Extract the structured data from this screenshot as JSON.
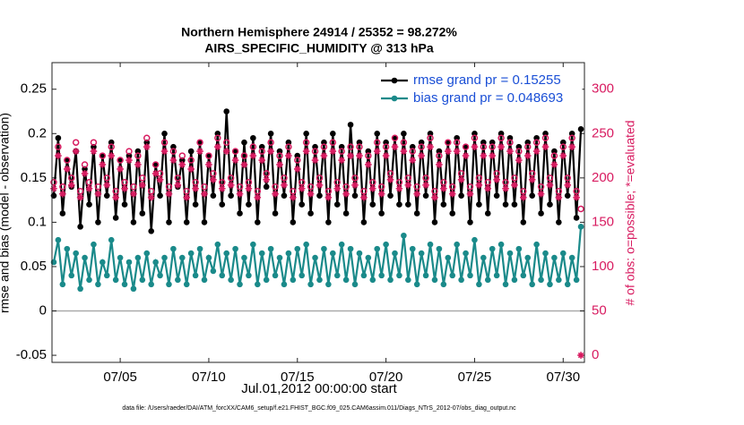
{
  "chart_data": {
    "type": "line",
    "title": "Northern Hemisphere 24914 / 25352 = 98.272%",
    "subtitle": "AIRS_SPECIFIC_HUMIDITY @ 313 hPa",
    "xlabel": "Jul.01,2012 00:00:00 start",
    "ylabel": "rmse and bias (model - observation)",
    "y2label": "# of obs: o=possible; *=evaluated",
    "footnote": "data file: /Users/raeder/DAI/ATM_forcXX/CAM6_setup/f.e21.FHIST_BGC.f09_025.CAM6assim.011/Diags_NTrS_2012-07/obs_diag_output.nc",
    "xlim": [
      1.15,
      31.2
    ],
    "xticks": [
      {
        "value": 5,
        "label": "07/05"
      },
      {
        "value": 10,
        "label": "07/10"
      },
      {
        "value": 15,
        "label": "07/15"
      },
      {
        "value": 20,
        "label": "07/20"
      },
      {
        "value": 25,
        "label": "07/25"
      },
      {
        "value": 30,
        "label": "07/30"
      }
    ],
    "ylim": [
      -0.058,
      0.28
    ],
    "yticks": [
      -0.05,
      0,
      0.05,
      0.1,
      0.15,
      0.2,
      0.25
    ],
    "y2lim": [
      -8,
      330
    ],
    "y2ticks": [
      0,
      50,
      100,
      150,
      200,
      250,
      300
    ],
    "zero_line": 0,
    "legend": "upper right",
    "x": [
      1.25,
      1.5,
      1.75,
      2,
      2.25,
      2.5,
      2.75,
      3,
      3.25,
      3.5,
      3.75,
      4,
      4.25,
      4.5,
      4.75,
      5,
      5.25,
      5.5,
      5.75,
      6,
      6.25,
      6.5,
      6.75,
      7,
      7.25,
      7.5,
      7.75,
      8,
      8.25,
      8.5,
      8.75,
      9,
      9.25,
      9.5,
      9.75,
      10,
      10.25,
      10.5,
      10.75,
      11,
      11.25,
      11.5,
      11.75,
      12,
      12.25,
      12.5,
      12.75,
      13,
      13.25,
      13.5,
      13.75,
      14,
      14.25,
      14.5,
      14.75,
      15,
      15.25,
      15.5,
      15.75,
      16,
      16.25,
      16.5,
      16.75,
      17,
      17.25,
      17.5,
      17.75,
      18,
      18.25,
      18.5,
      18.75,
      19,
      19.25,
      19.5,
      19.75,
      20,
      20.25,
      20.5,
      20.75,
      21,
      21.25,
      21.5,
      21.75,
      22,
      22.25,
      22.5,
      22.75,
      23,
      23.25,
      23.5,
      23.75,
      24,
      24.25,
      24.5,
      24.75,
      25,
      25.25,
      25.5,
      25.75,
      26,
      26.25,
      26.5,
      26.75,
      27,
      27.25,
      27.5,
      27.75,
      28,
      28.25,
      28.5,
      28.75,
      29,
      29.25,
      29.5,
      29.75,
      30,
      30.25,
      30.5,
      30.75,
      31
    ],
    "series": [
      {
        "name": "rmse grand pr = 0.15255",
        "color": "#000000",
        "marker": "dot",
        "line": true,
        "values": [
          0.13,
          0.195,
          0.11,
          0.17,
          0.14,
          0.18,
          0.095,
          0.16,
          0.12,
          0.185,
          0.1,
          0.175,
          0.13,
          0.19,
          0.105,
          0.17,
          0.12,
          0.175,
          0.1,
          0.18,
          0.11,
          0.19,
          0.09,
          0.165,
          0.13,
          0.2,
          0.1,
          0.185,
          0.14,
          0.17,
          0.1,
          0.18,
          0.12,
          0.19,
          0.1,
          0.175,
          0.13,
          0.2,
          0.12,
          0.225,
          0.13,
          0.18,
          0.11,
          0.19,
          0.12,
          0.195,
          0.1,
          0.185,
          0.14,
          0.2,
          0.11,
          0.18,
          0.13,
          0.19,
          0.1,
          0.175,
          0.12,
          0.2,
          0.11,
          0.185,
          0.13,
          0.19,
          0.1,
          0.2,
          0.12,
          0.185,
          0.11,
          0.21,
          0.13,
          0.19,
          0.1,
          0.18,
          0.12,
          0.2,
          0.11,
          0.19,
          0.13,
          0.195,
          0.12,
          0.2,
          0.12,
          0.185,
          0.11,
          0.19,
          0.13,
          0.2,
          0.1,
          0.18,
          0.12,
          0.19,
          0.11,
          0.195,
          0.13,
          0.185,
          0.1,
          0.2,
          0.12,
          0.19,
          0.11,
          0.19,
          0.13,
          0.2,
          0.12,
          0.195,
          0.12,
          0.185,
          0.1,
          0.19,
          0.13,
          0.195,
          0.11,
          0.2,
          0.12,
          0.18,
          0.1,
          0.19,
          0.13,
          0.2,
          0.105,
          0.205
        ]
      },
      {
        "name": "bias grand pr = 0.048693",
        "color": "#1a8a8a",
        "marker": "dot",
        "line": true,
        "values": [
          0.055,
          0.08,
          0.03,
          0.07,
          0.04,
          0.065,
          0.025,
          0.06,
          0.035,
          0.075,
          0.03,
          0.055,
          0.04,
          0.08,
          0.035,
          0.06,
          0.03,
          0.055,
          0.025,
          0.06,
          0.035,
          0.065,
          0.03,
          0.055,
          0.04,
          0.06,
          0.03,
          0.07,
          0.035,
          0.06,
          0.03,
          0.065,
          0.04,
          0.07,
          0.035,
          0.06,
          0.045,
          0.075,
          0.04,
          0.065,
          0.035,
          0.07,
          0.03,
          0.06,
          0.04,
          0.075,
          0.03,
          0.065,
          0.035,
          0.07,
          0.04,
          0.06,
          0.03,
          0.065,
          0.035,
          0.07,
          0.04,
          0.075,
          0.03,
          0.06,
          0.035,
          0.07,
          0.03,
          0.065,
          0.04,
          0.075,
          0.035,
          0.07,
          0.03,
          0.065,
          0.04,
          0.06,
          0.035,
          0.07,
          0.04,
          0.075,
          0.035,
          0.065,
          0.04,
          0.085,
          0.035,
          0.07,
          0.03,
          0.065,
          0.04,
          0.075,
          0.035,
          0.07,
          0.03,
          0.06,
          0.04,
          0.075,
          0.035,
          0.065,
          0.04,
          0.08,
          0.03,
          0.06,
          0.035,
          0.07,
          0.04,
          0.075,
          0.03,
          0.065,
          0.035,
          0.07,
          0.04,
          0.06,
          0.03,
          0.075,
          0.035,
          0.065,
          0.03,
          0.06,
          0.035,
          0.065,
          0.03,
          0.06,
          0.035,
          0.095
        ]
      },
      {
        "color": "#d81b60",
        "marker": "o",
        "axis": "y2",
        "values": [
          195,
          235,
          190,
          220,
          200,
          240,
          185,
          215,
          195,
          240,
          190,
          225,
          200,
          235,
          185,
          220,
          195,
          230,
          190,
          225,
          200,
          245,
          185,
          215,
          205,
          240,
          190,
          230,
          200,
          225,
          185,
          220,
          195,
          240,
          190,
          225,
          205,
          245,
          195,
          240,
          200,
          230,
          190,
          225,
          195,
          235,
          185,
          230,
          205,
          240,
          190,
          225,
          200,
          235,
          185,
          220,
          195,
          240,
          190,
          230,
          200,
          235,
          185,
          240,
          195,
          230,
          190,
          235,
          200,
          235,
          185,
          225,
          195,
          240,
          190,
          235,
          205,
          245,
          195,
          240,
          200,
          230,
          190,
          235,
          200,
          245,
          185,
          225,
          195,
          240,
          190,
          240,
          205,
          235,
          190,
          245,
          200,
          235,
          195,
          235,
          205,
          245,
          195,
          240,
          200,
          230,
          185,
          235,
          205,
          240,
          190,
          245,
          200,
          225,
          185,
          235,
          200,
          245,
          185,
          165
        ]
      },
      {
        "color": "#d81b60",
        "marker": "*",
        "axis": "y2",
        "values": [
          188,
          225,
          182,
          210,
          192,
          230,
          178,
          205,
          188,
          230,
          182,
          215,
          192,
          225,
          178,
          210,
          188,
          220,
          182,
          215,
          192,
          235,
          178,
          205,
          198,
          230,
          182,
          220,
          192,
          215,
          178,
          210,
          188,
          230,
          182,
          215,
          198,
          235,
          188,
          230,
          192,
          220,
          182,
          215,
          188,
          225,
          178,
          220,
          198,
          230,
          182,
          215,
          192,
          225,
          178,
          210,
          188,
          230,
          182,
          220,
          192,
          225,
          178,
          230,
          188,
          220,
          182,
          225,
          192,
          225,
          178,
          215,
          188,
          230,
          182,
          225,
          198,
          235,
          188,
          230,
          192,
          220,
          182,
          225,
          192,
          235,
          178,
          215,
          188,
          230,
          182,
          230,
          198,
          225,
          182,
          235,
          192,
          225,
          188,
          225,
          198,
          235,
          188,
          230,
          192,
          220,
          178,
          225,
          198,
          230,
          182,
          235,
          192,
          215,
          178,
          225,
          192,
          235,
          178,
          0
        ]
      }
    ]
  }
}
